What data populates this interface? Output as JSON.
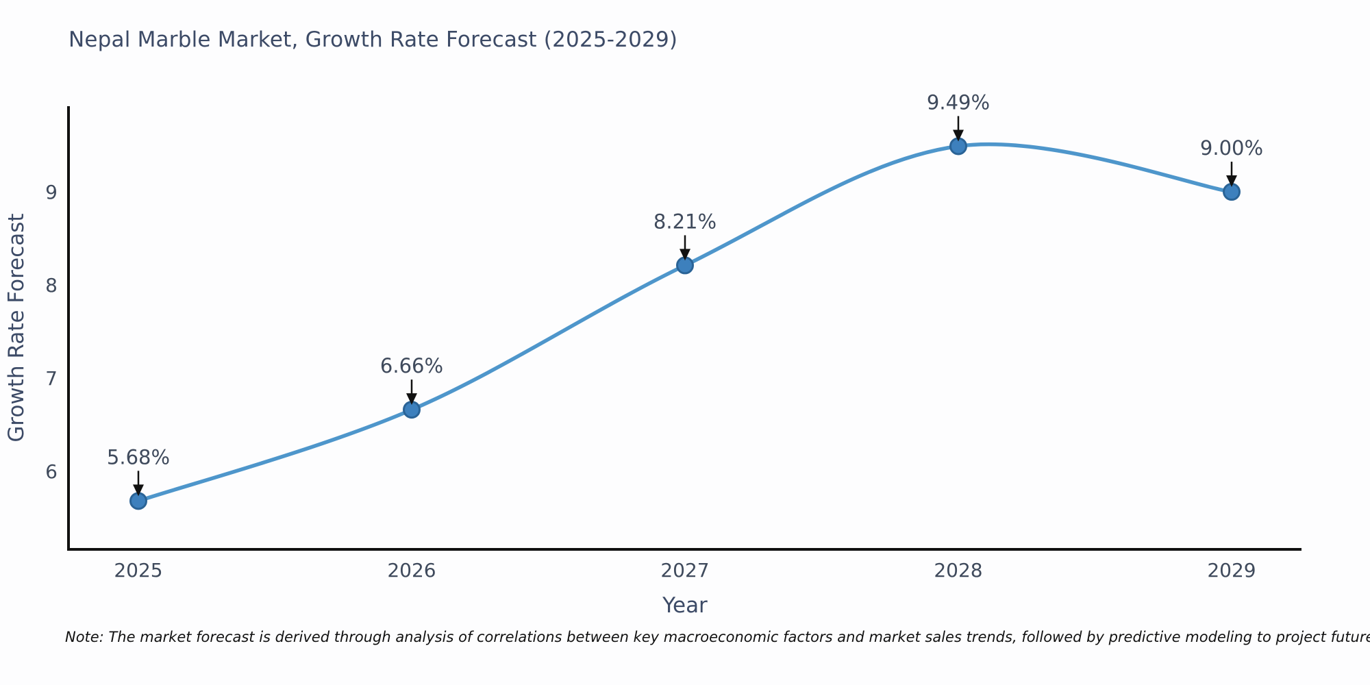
{
  "chart_data": {
    "type": "line",
    "title": "Nepal Marble Market, Growth Rate Forecast (2025-2029)",
    "xlabel": "Year",
    "ylabel": "Growth Rate Forecast",
    "categories": [
      "2025",
      "2026",
      "2027",
      "2028",
      "2029"
    ],
    "series": [
      {
        "name": "Growth Rate Forecast",
        "values": [
          5.68,
          6.66,
          8.21,
          9.49,
          9.0
        ],
        "point_labels": [
          "5.68%",
          "6.66%",
          "8.21%",
          "9.49%",
          "9.00%"
        ]
      }
    ],
    "yticks": [
      6,
      7,
      8,
      9
    ],
    "ylim": [
      5.16,
      9.92
    ],
    "line_shape": "spline",
    "grid": false,
    "legend": false,
    "annotations": "arrow-down-to-point",
    "note": "Note: The market forecast is derived through analysis of correlations between key macroeconomic factors and market sales trends, followed by predictive modeling to project future sales.",
    "colors": {
      "line": "#4e96cb",
      "marker_fill": "#3d80bd",
      "marker_edge": "#2a6396",
      "axis": "#111111",
      "title_text": "#3c4a66",
      "tick_text": "#3f4a5c",
      "arrow": "#111111",
      "note_text": "#111111",
      "background": "#fdfdfe"
    }
  }
}
